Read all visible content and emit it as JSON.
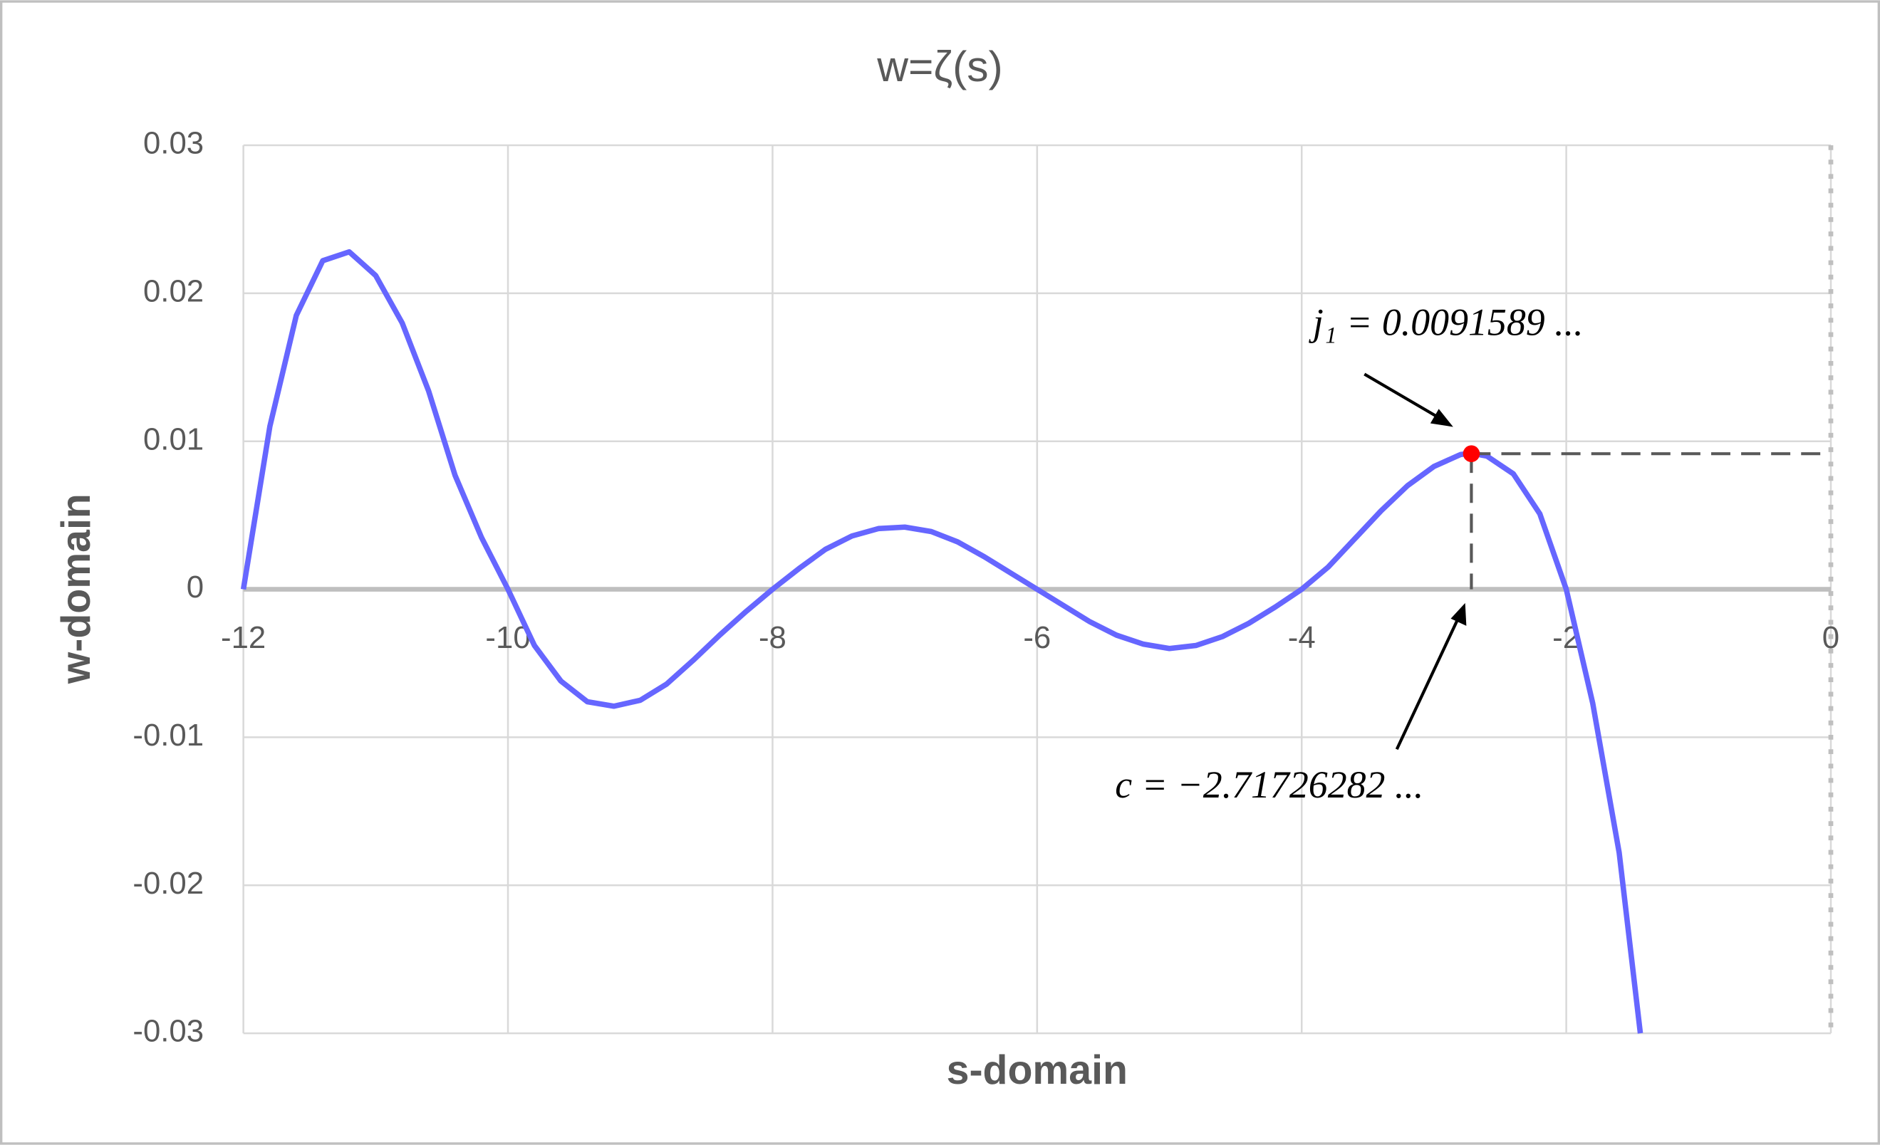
{
  "chart_data": {
    "type": "line",
    "title": "w=ζ(s)",
    "x_label": "s-domain",
    "y_label": "w-domain",
    "x": [
      -12,
      -11.8,
      -11.6,
      -11.4,
      -11.2,
      -11.0,
      -10.8,
      -10.6,
      -10.4,
      -10.2,
      -10,
      -9.8,
      -9.6,
      -9.4,
      -9.2,
      -9.0,
      -8.8,
      -8.6,
      -8.4,
      -8.2,
      -8,
      -7.8,
      -7.6,
      -7.4,
      -7.2,
      -7.0,
      -6.8,
      -6.6,
      -6.4,
      -6.2,
      -6,
      -5.8,
      -5.6,
      -5.4,
      -5.2,
      -5.0,
      -4.8,
      -4.6,
      -4.4,
      -4.2,
      -4,
      -3.8,
      -3.6,
      -3.4,
      -3.2,
      -3.0,
      -2.8,
      -2.72,
      -2.6,
      -2.4,
      -2.2,
      -2.0,
      -1.8,
      -1.6,
      -1.44
    ],
    "series": [
      {
        "color": "#6666ff",
        "values": [
          0,
          0.011,
          0.0185,
          0.0222,
          0.0228,
          0.0212,
          0.018,
          0.0134,
          0.0077,
          0.0035,
          0,
          -0.0038,
          -0.0062,
          -0.0076,
          -0.0079,
          -0.0075,
          -0.0064,
          -0.0048,
          -0.0031,
          -0.0015,
          0,
          0.0014,
          0.0027,
          0.0036,
          0.0041,
          0.0042,
          0.0039,
          0.0032,
          0.0022,
          0.0011,
          0,
          -0.0011,
          -0.0022,
          -0.0031,
          -0.0037,
          -0.004,
          -0.0038,
          -0.0032,
          -0.0023,
          -0.0012,
          0,
          0.0015,
          0.0034,
          0.0053,
          0.007,
          0.0083,
          0.0091,
          0.0092,
          0.009,
          0.0078,
          0.0051,
          0,
          -0.0077,
          -0.0178,
          -0.03
        ]
      }
    ],
    "highlight": {
      "x": -2.71726282,
      "y": 0.0091589,
      "color": "#ff0000",
      "y_label": "j₁ = 0.0091589 ...",
      "x_label": "c = −2.71726282 ..."
    },
    "xlim": [
      -12,
      0
    ],
    "xticks": [
      -12,
      -10,
      -8,
      -6,
      -4,
      -2,
      0
    ],
    "ylim": [
      -0.03,
      0.03
    ],
    "yticks": [
      -0.03,
      -0.02,
      -0.01,
      0,
      0.01,
      0.02,
      0.03
    ],
    "grid": true
  }
}
